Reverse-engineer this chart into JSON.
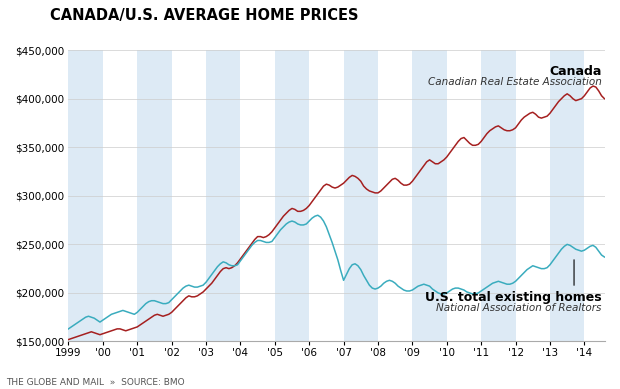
{
  "title": "CANADA/U.S. AVERAGE HOME PRICES",
  "ylim": [
    150000,
    450000
  ],
  "yticks": [
    150000,
    200000,
    250000,
    300000,
    350000,
    400000,
    450000
  ],
  "background_color": "#ffffff",
  "stripe_color": "#ddeaf5",
  "canada_color": "#a52020",
  "us_color": "#3aacbe",
  "footer": "THE GLOBE AND MAIL  »  SOURCE: BMO",
  "canada_label": "Canada",
  "canada_sublabel": "Canadian Real Estate Association",
  "us_label": "U.S. total existing homes",
  "us_sublabel": "National Association of Realtors",
  "stripe_years_start": [
    1999,
    2001,
    2003,
    2005,
    2007,
    2009,
    2011,
    2013
  ],
  "canada_monthly": [
    152000,
    153000,
    154000,
    155000,
    156000,
    157000,
    158000,
    159000,
    160000,
    159000,
    158000,
    157000,
    158000,
    159000,
    160000,
    161000,
    162000,
    163000,
    163000,
    162000,
    161000,
    162000,
    163000,
    164000,
    165000,
    167000,
    169000,
    171000,
    173000,
    175000,
    177000,
    178000,
    177000,
    176000,
    177000,
    178000,
    180000,
    183000,
    186000,
    189000,
    192000,
    195000,
    197000,
    196000,
    196000,
    197000,
    199000,
    201000,
    204000,
    207000,
    210000,
    214000,
    218000,
    222000,
    225000,
    226000,
    225000,
    226000,
    228000,
    231000,
    235000,
    239000,
    243000,
    247000,
    251000,
    255000,
    258000,
    258000,
    257000,
    258000,
    260000,
    263000,
    267000,
    271000,
    275000,
    279000,
    282000,
    285000,
    287000,
    286000,
    284000,
    284000,
    285000,
    287000,
    290000,
    294000,
    298000,
    302000,
    306000,
    310000,
    312000,
    311000,
    309000,
    308000,
    309000,
    311000,
    313000,
    316000,
    319000,
    321000,
    320000,
    318000,
    315000,
    310000,
    307000,
    305000,
    304000,
    303000,
    303000,
    305000,
    308000,
    311000,
    314000,
    317000,
    318000,
    316000,
    313000,
    311000,
    311000,
    312000,
    315000,
    319000,
    323000,
    327000,
    331000,
    335000,
    337000,
    335000,
    333000,
    333000,
    335000,
    337000,
    340000,
    344000,
    348000,
    352000,
    356000,
    359000,
    360000,
    357000,
    354000,
    352000,
    352000,
    353000,
    356000,
    360000,
    364000,
    367000,
    369000,
    371000,
    372000,
    370000,
    368000,
    367000,
    367000,
    368000,
    370000,
    374000,
    378000,
    381000,
    383000,
    385000,
    386000,
    384000,
    381000,
    380000,
    381000,
    382000,
    385000,
    389000,
    393000,
    397000,
    400000,
    403000,
    405000,
    403000,
    400000,
    398000,
    399000,
    400000,
    403000,
    407000,
    411000,
    413000,
    412000,
    408000,
    403000,
    400000
  ],
  "us_monthly": [
    163000,
    165000,
    167000,
    169000,
    171000,
    173000,
    175000,
    176000,
    175000,
    174000,
    172000,
    170000,
    172000,
    174000,
    176000,
    178000,
    179000,
    180000,
    181000,
    182000,
    181000,
    180000,
    179000,
    178000,
    180000,
    183000,
    186000,
    189000,
    191000,
    192000,
    192000,
    191000,
    190000,
    189000,
    189000,
    190000,
    193000,
    196000,
    199000,
    202000,
    205000,
    207000,
    208000,
    207000,
    206000,
    206000,
    207000,
    208000,
    211000,
    215000,
    219000,
    223000,
    227000,
    230000,
    232000,
    231000,
    229000,
    228000,
    228000,
    229000,
    233000,
    237000,
    241000,
    245000,
    249000,
    252000,
    254000,
    254000,
    253000,
    252000,
    252000,
    253000,
    257000,
    261000,
    265000,
    268000,
    271000,
    273000,
    274000,
    273000,
    271000,
    270000,
    270000,
    271000,
    274000,
    277000,
    279000,
    280000,
    278000,
    274000,
    268000,
    260000,
    252000,
    243000,
    234000,
    223000,
    213000,
    219000,
    225000,
    229000,
    230000,
    228000,
    224000,
    218000,
    213000,
    208000,
    205000,
    204000,
    205000,
    207000,
    210000,
    212000,
    213000,
    212000,
    210000,
    207000,
    205000,
    203000,
    202000,
    202000,
    203000,
    205000,
    207000,
    208000,
    209000,
    208000,
    207000,
    204000,
    202000,
    200000,
    199000,
    199000,
    200000,
    202000,
    204000,
    205000,
    205000,
    204000,
    203000,
    201000,
    200000,
    199000,
    199000,
    200000,
    202000,
    204000,
    206000,
    208000,
    210000,
    211000,
    212000,
    211000,
    210000,
    209000,
    209000,
    210000,
    212000,
    215000,
    218000,
    221000,
    224000,
    226000,
    228000,
    227000,
    226000,
    225000,
    225000,
    226000,
    229000,
    233000,
    237000,
    241000,
    245000,
    248000,
    250000,
    249000,
    247000,
    245000,
    244000,
    243000,
    244000,
    246000,
    248000,
    249000,
    247000,
    243000,
    239000,
    237000
  ]
}
